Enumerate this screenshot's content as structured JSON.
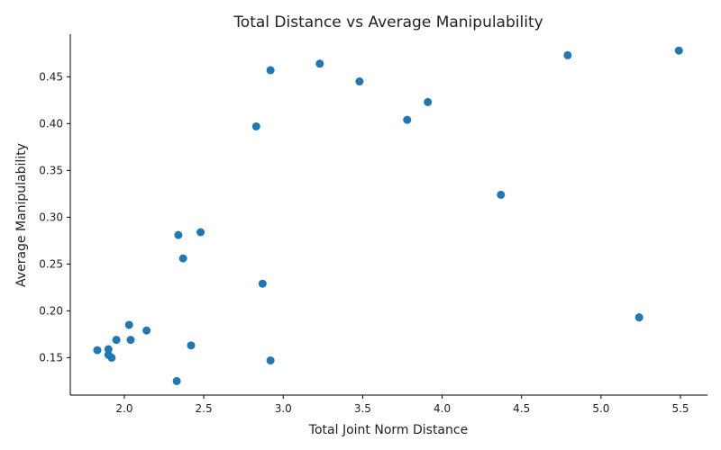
{
  "chart_data": {
    "type": "scatter",
    "title": "Total Distance vs Average Manipulability",
    "xlabel": "Total Joint Norm Distance",
    "ylabel": "Average Manipulability",
    "xlim": [
      1.66,
      5.67
    ],
    "ylim": [
      0.11,
      0.4955
    ],
    "xticks": [
      2.0,
      2.5,
      3.0,
      3.5,
      4.0,
      4.5,
      5.0,
      5.5
    ],
    "xtick_labels": [
      "2.0",
      "2.5",
      "3.0",
      "3.5",
      "4.0",
      "4.5",
      "5.0",
      "5.5"
    ],
    "yticks": [
      0.15,
      0.2,
      0.25,
      0.3,
      0.35,
      0.4,
      0.45
    ],
    "ytick_labels": [
      "0.15",
      "0.20",
      "0.25",
      "0.30",
      "0.35",
      "0.40",
      "0.45"
    ],
    "grid": false,
    "color": "#1f77b4",
    "points": [
      {
        "x": 5.49,
        "y": 0.478
      },
      {
        "x": 4.79,
        "y": 0.473
      },
      {
        "x": 3.23,
        "y": 0.464
      },
      {
        "x": 2.92,
        "y": 0.457
      },
      {
        "x": 3.48,
        "y": 0.445
      },
      {
        "x": 3.91,
        "y": 0.423
      },
      {
        "x": 3.78,
        "y": 0.404
      },
      {
        "x": 2.83,
        "y": 0.397
      },
      {
        "x": 4.37,
        "y": 0.324
      },
      {
        "x": 2.48,
        "y": 0.284
      },
      {
        "x": 2.34,
        "y": 0.281
      },
      {
        "x": 2.37,
        "y": 0.256
      },
      {
        "x": 2.87,
        "y": 0.229
      },
      {
        "x": 5.24,
        "y": 0.193
      },
      {
        "x": 2.03,
        "y": 0.185
      },
      {
        "x": 2.14,
        "y": 0.179
      },
      {
        "x": 1.95,
        "y": 0.169
      },
      {
        "x": 2.04,
        "y": 0.169
      },
      {
        "x": 2.42,
        "y": 0.163
      },
      {
        "x": 1.9,
        "y": 0.159
      },
      {
        "x": 1.83,
        "y": 0.158
      },
      {
        "x": 1.9,
        "y": 0.153
      },
      {
        "x": 1.92,
        "y": 0.15
      },
      {
        "x": 2.92,
        "y": 0.147
      },
      {
        "x": 2.33,
        "y": 0.125
      }
    ]
  }
}
